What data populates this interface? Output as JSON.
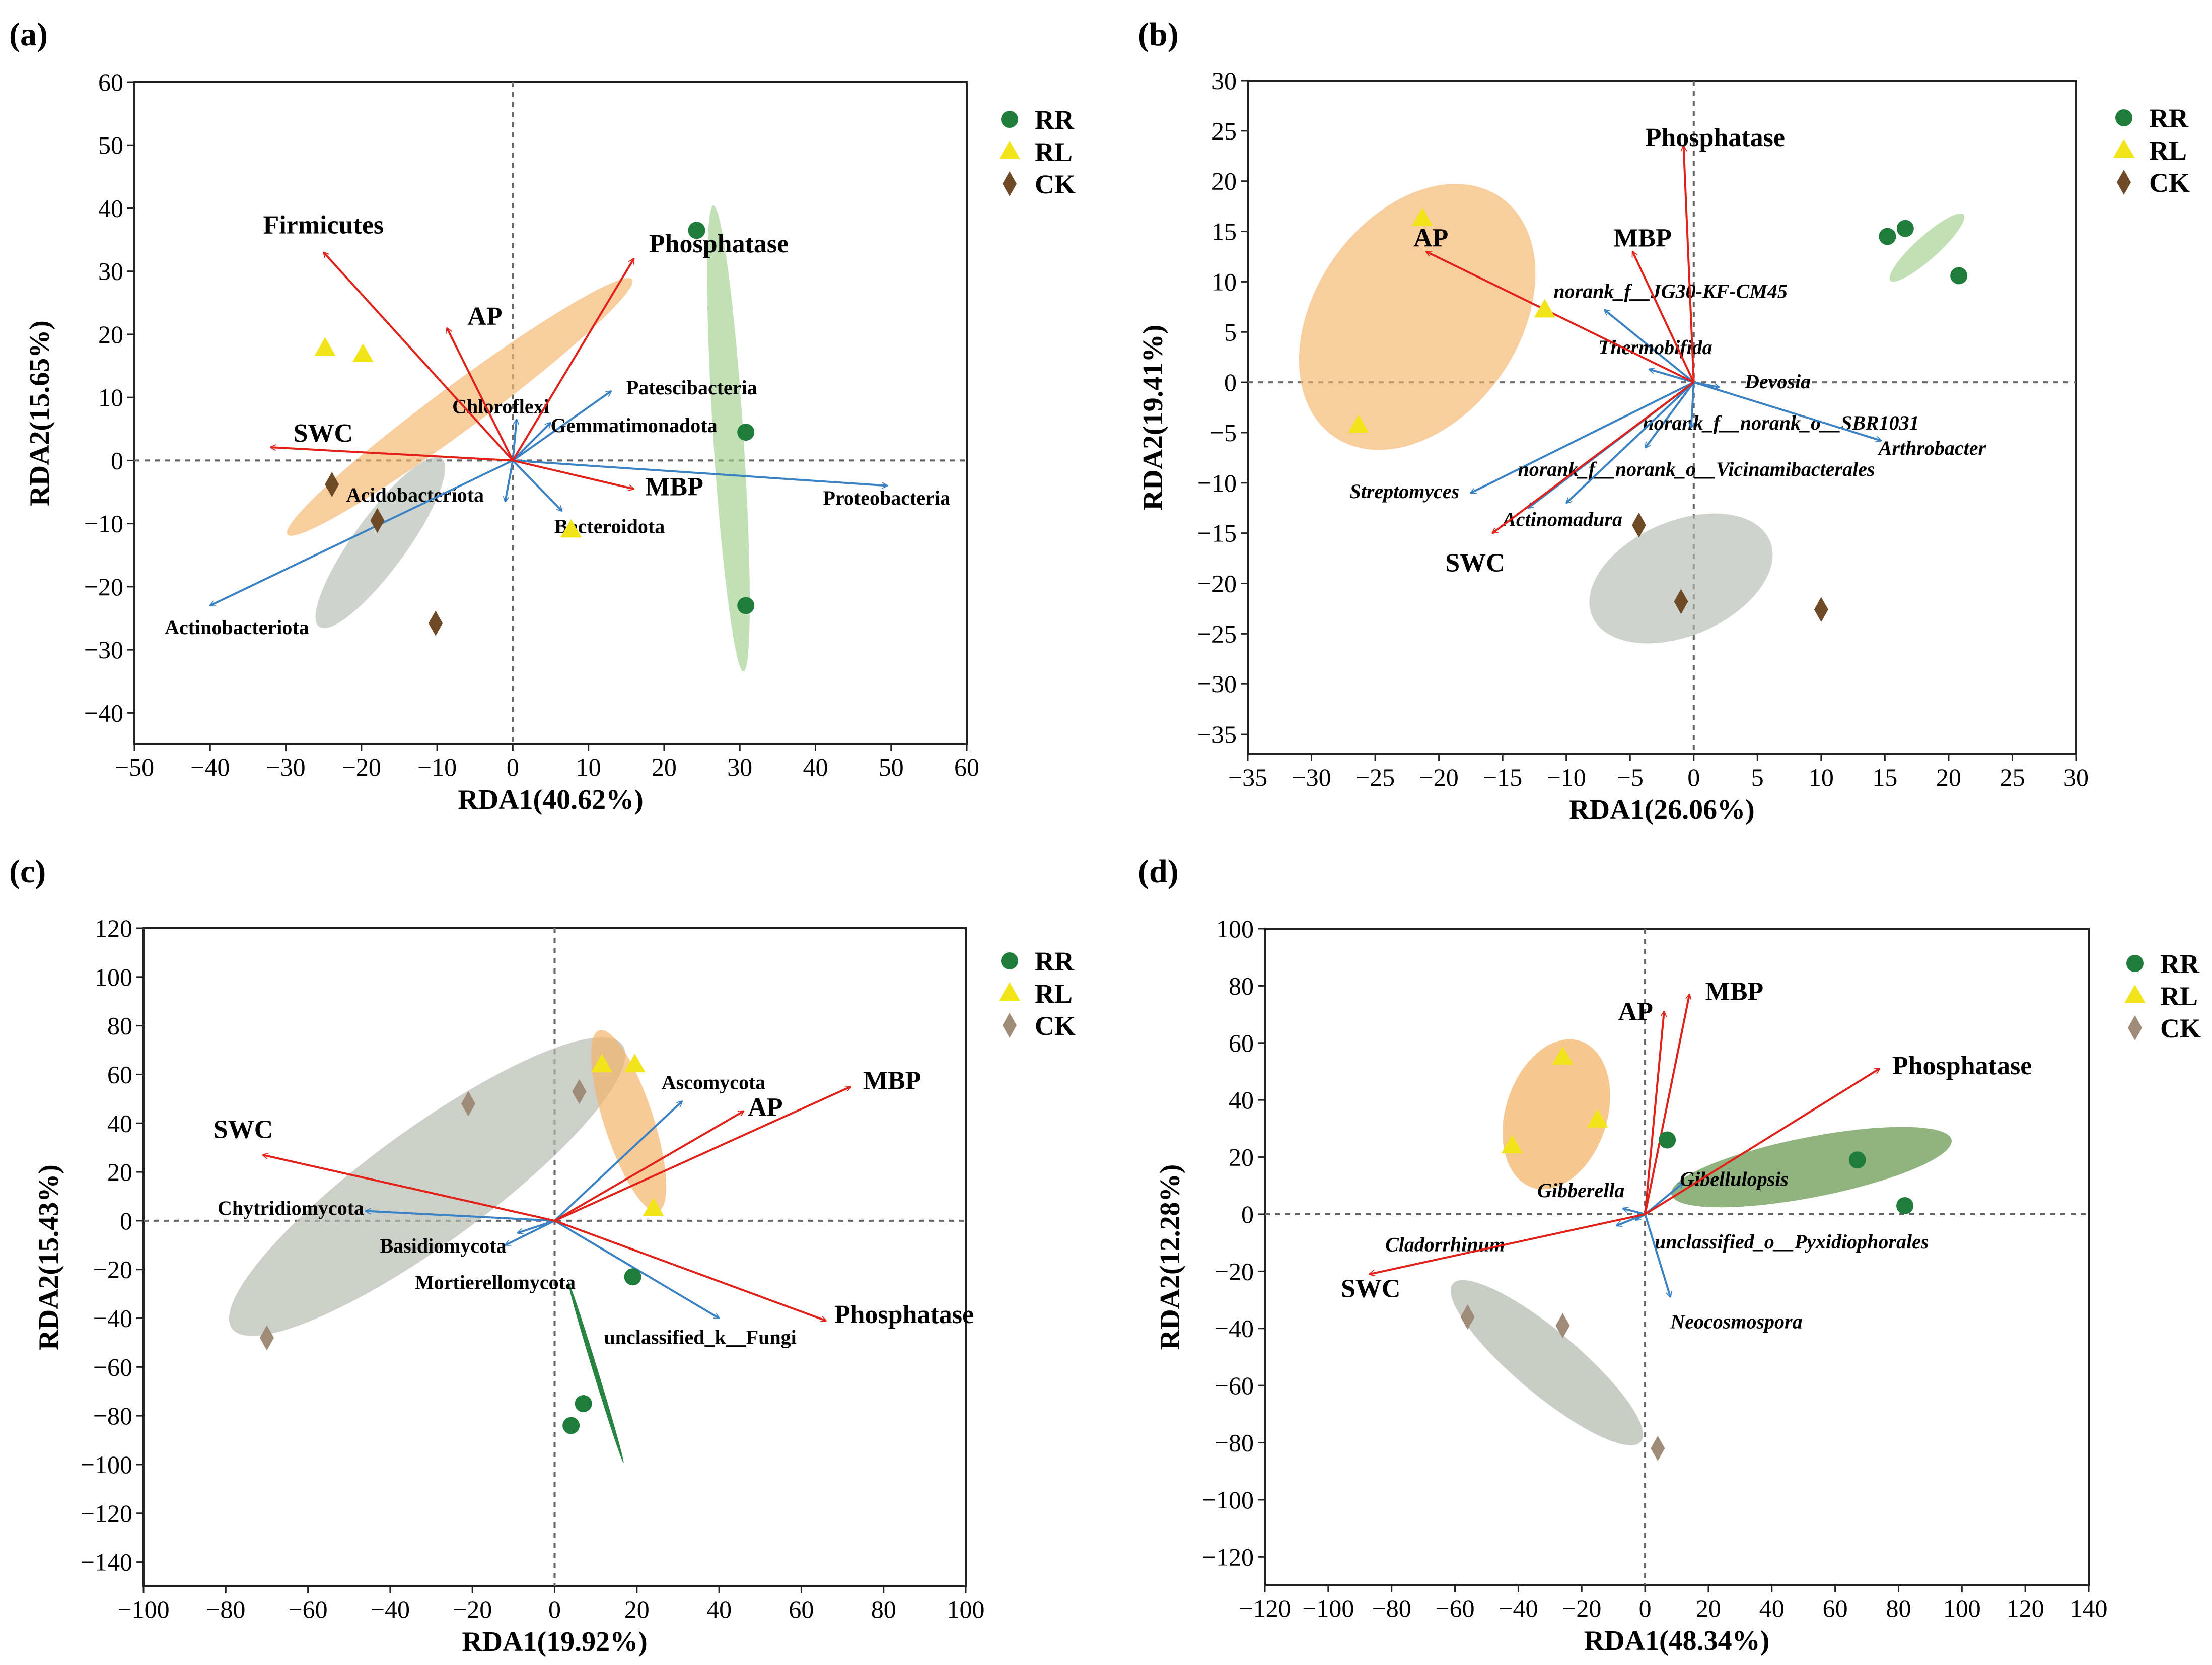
{
  "colors": {
    "env_arrow": "#e32119",
    "taxon_arrow": "#3a82c4",
    "RR": "#1e7d3a",
    "RL": "#f1e51a",
    "CK_dark": "#6f4a27",
    "CK_light": "#a08a78"
  },
  "chart_data": [
    {
      "id": "a",
      "label": "(a)",
      "type": "scatter",
      "xlabel": "RDA1(40.62%)",
      "ylabel": "RDA2(15.65%)",
      "xlim": [
        -50,
        60
      ],
      "ylim": [
        -45,
        60
      ],
      "xticks": [
        -50,
        -40,
        -30,
        -20,
        -10,
        0,
        10,
        20,
        30,
        40,
        50,
        60
      ],
      "yticks": [
        -40,
        -30,
        -20,
        -10,
        0,
        10,
        20,
        30,
        40,
        50,
        60
      ],
      "taxon_italic": false,
      "legend": [
        {
          "name": "RR",
          "marker": "circle",
          "color": "#1e7d3a"
        },
        {
          "name": "RL",
          "marker": "triangle",
          "color": "#f1e51a"
        },
        {
          "name": "CK",
          "marker": "diamond",
          "color": "#6f4a27"
        }
      ],
      "ellipses": [
        {
          "group": "RR",
          "color": "#9fcf8d",
          "opacity": 0.65,
          "center": [
            28.5,
            3.5
          ],
          "axes": [
            2,
            37
          ],
          "angle": -3.7
        },
        {
          "group": "RL",
          "color": "#f4b46b",
          "opacity": 0.65,
          "center": [
            -7,
            8.5
          ],
          "axes": [
            3,
            34
          ],
          "angle": 53.5
        },
        {
          "group": "CK",
          "color": "#b6bcb2",
          "opacity": 0.65,
          "center": [
            -17.5,
            -13
          ],
          "axes": [
            3.5,
            16.5
          ],
          "angle": 36
        }
      ],
      "points": [
        {
          "group": "RR",
          "x": 24.3,
          "y": 36.5
        },
        {
          "group": "RR",
          "x": 30.8,
          "y": 4.5
        },
        {
          "group": "RR",
          "x": 30.8,
          "y": -23
        },
        {
          "group": "RL",
          "x": -24.8,
          "y": 17.8
        },
        {
          "group": "RL",
          "x": -19.8,
          "y": 16.8
        },
        {
          "group": "RL",
          "x": 7.7,
          "y": -11
        },
        {
          "group": "CK",
          "x": -23.9,
          "y": -3.8
        },
        {
          "group": "CK",
          "x": -17.9,
          "y": -9.5
        },
        {
          "group": "CK",
          "x": -10.2,
          "y": -25.8
        }
      ],
      "env_arrows": [
        {
          "name": "Phosphatase",
          "x": 16,
          "y": 32,
          "lx": 18,
          "ly": 33,
          "anchor": "start"
        },
        {
          "name": "Firmicutes",
          "x": -25,
          "y": 33,
          "lx": -33,
          "ly": 36,
          "anchor": "start"
        },
        {
          "name": "AP",
          "x": -8.7,
          "y": 21,
          "lx": -6,
          "ly": 21.5,
          "anchor": "start"
        },
        {
          "name": "SWC",
          "x": -32,
          "y": 2.1,
          "lx": -29,
          "ly": 3,
          "anchor": "start"
        },
        {
          "name": "MBP",
          "x": 16,
          "y": -4.5,
          "lx": 17.5,
          "ly": -5.5,
          "anchor": "start"
        }
      ],
      "taxon_arrows": [
        {
          "name": "Patescibacteria",
          "x": 13,
          "y": 11,
          "lx": 15,
          "ly": 10.5,
          "anchor": "start"
        },
        {
          "name": "Chloroflexi",
          "x": 0.5,
          "y": 6.5,
          "lx": -8,
          "ly": 7.5,
          "anchor": "start"
        },
        {
          "name": "Gemmatimonadota",
          "x": 5,
          "y": 6,
          "lx": 5,
          "ly": 4.5,
          "anchor": "start"
        },
        {
          "name": "Proteobacteria",
          "x": 49.5,
          "y": -4,
          "lx": 41,
          "ly": -7,
          "anchor": "start"
        },
        {
          "name": "Acidobacteriota",
          "x": -1,
          "y": -6.5,
          "lx": -22,
          "ly": -6.5,
          "anchor": "start"
        },
        {
          "name": "Bacteroidota",
          "x": 6.5,
          "y": -8,
          "lx": 5.5,
          "ly": -11.5,
          "anchor": "start"
        },
        {
          "name": "Actinobacteriota",
          "x": -40,
          "y": -23,
          "lx": -46,
          "ly": -27.5,
          "anchor": "start"
        }
      ]
    },
    {
      "id": "b",
      "label": "(b)",
      "type": "scatter",
      "xlabel": "RDA1(26.06%)",
      "ylabel": "RDA2(19.41%)",
      "xlim": [
        -35,
        30
      ],
      "ylim": [
        -37,
        30
      ],
      "xticks": [
        -35,
        -30,
        -25,
        -20,
        -15,
        -10,
        -5,
        0,
        5,
        10,
        15,
        20,
        25,
        30
      ],
      "yticks": [
        -35,
        -30,
        -25,
        -20,
        -15,
        -10,
        -5,
        0,
        5,
        10,
        15,
        20,
        25,
        30
      ],
      "taxon_italic": true,
      "legend": [
        {
          "name": "RR",
          "marker": "circle",
          "color": "#1e7d3a"
        },
        {
          "name": "RL",
          "marker": "triangle",
          "color": "#f1e51a"
        },
        {
          "name": "CK",
          "marker": "diamond",
          "color": "#6f4a27"
        }
      ],
      "ellipses": [
        {
          "group": "RR",
          "color": "#9fcf8d",
          "opacity": 0.65,
          "center": [
            18.3,
            13.4
          ],
          "axes": [
            0.9,
            4.9
          ],
          "angle": 48
        },
        {
          "group": "RL",
          "color": "#f4b46b",
          "opacity": 0.65,
          "center": [
            -21.7,
            6.5
          ],
          "axes": [
            8,
            14.5
          ],
          "angle": 35
        },
        {
          "group": "CK",
          "color": "#b6bcb2",
          "opacity": 0.65,
          "center": [
            -1,
            -19.5
          ],
          "axes": [
            4.5,
            9.6
          ],
          "angle": 67
        }
      ],
      "points": [
        {
          "group": "RR",
          "x": 15.2,
          "y": 14.5
        },
        {
          "group": "RR",
          "x": 16.6,
          "y": 15.3
        },
        {
          "group": "RR",
          "x": 20.8,
          "y": 10.6
        },
        {
          "group": "RL",
          "x": -21.3,
          "y": 16.3
        },
        {
          "group": "RL",
          "x": -11.7,
          "y": 7.2
        },
        {
          "group": "RL",
          "x": -26.3,
          "y": -4.3
        },
        {
          "group": "CK",
          "x": -4.3,
          "y": -14.2
        },
        {
          "group": "CK",
          "x": -1,
          "y": -21.8
        },
        {
          "group": "CK",
          "x": 10,
          "y": -22.6
        }
      ],
      "env_arrows": [
        {
          "name": "Phosphatase",
          "x": -0.8,
          "y": 23.5,
          "lx": -3.8,
          "ly": 23.5,
          "anchor": "start"
        },
        {
          "name": "MBP",
          "x": -4.8,
          "y": 13,
          "lx": -6.3,
          "ly": 13.5,
          "anchor": "start"
        },
        {
          "name": "AP",
          "x": -21,
          "y": 13,
          "lx": -22,
          "ly": 13.5,
          "anchor": "start"
        },
        {
          "name": "SWC",
          "x": -15.8,
          "y": -15,
          "lx": -19.5,
          "ly": -18.8,
          "anchor": "start"
        }
      ],
      "taxon_arrows": [
        {
          "name": "norank_f__JG30-KF-CM45",
          "x": -7,
          "y": 7.2,
          "lx": -11,
          "ly": 8.4,
          "anchor": "start"
        },
        {
          "name": "Thermobifida",
          "x": -3.5,
          "y": 1.3,
          "lx": -7.5,
          "ly": 2.8,
          "anchor": "start"
        },
        {
          "name": "Devosia",
          "x": 2,
          "y": -0.5,
          "lx": 4,
          "ly": -0.6,
          "anchor": "start"
        },
        {
          "name": "norank_f__norank_o__SBR1031",
          "x": -3.8,
          "y": -6.5,
          "lx": -4,
          "ly": -4.7,
          "anchor": "start"
        },
        {
          "name": "Arthrobacter",
          "x": 14.7,
          "y": -5.8,
          "lx": 14.5,
          "ly": -7.2,
          "anchor": "start"
        },
        {
          "name": "Streptomyces",
          "x": -17.5,
          "y": -11,
          "lx": -27,
          "ly": -11.5,
          "anchor": "start"
        },
        {
          "name": "norank_f__norank_o__Vicinamibacterales",
          "x": -13,
          "y": -12.5,
          "lx": -13.8,
          "ly": -9.3,
          "anchor": "start"
        },
        {
          "name": "Actinomadura",
          "x": -10,
          "y": -12,
          "lx": -15,
          "ly": -14.3,
          "anchor": "start"
        },
        {
          "name": "",
          "x": -0.2,
          "y": -4.5,
          "lx": 0,
          "ly": 0,
          "anchor": "start"
        }
      ]
    },
    {
      "id": "c",
      "label": "(c)",
      "type": "scatter",
      "xlabel": "RDA1(19.92%)",
      "ylabel": "RDA2(15.43%)",
      "xlim": [
        -100,
        100
      ],
      "ylim": [
        -150,
        120
      ],
      "xticks": [
        -100,
        -80,
        -60,
        -40,
        -20,
        0,
        20,
        40,
        60,
        80,
        100
      ],
      "yticks": [
        -140,
        -120,
        -100,
        -80,
        -60,
        -40,
        -20,
        0,
        20,
        40,
        60,
        80,
        100,
        120
      ],
      "taxon_italic": false,
      "legend": [
        {
          "name": "RR",
          "marker": "circle",
          "color": "#1e7d3a"
        },
        {
          "name": "RL",
          "marker": "triangle",
          "color": "#f1e51a"
        },
        {
          "name": "CK",
          "marker": "diamond",
          "color": "#a08a78"
        }
      ],
      "ellipses": [
        {
          "group": "CK",
          "color": "#b6bcb2",
          "opacity": 0.7,
          "center": [
            -31,
            14
          ],
          "axes": [
            14,
            99
          ],
          "angle": 54
        },
        {
          "group": "RL",
          "color": "#f4b46b",
          "opacity": 0.7,
          "center": [
            18,
            41
          ],
          "axes": [
            6,
            39
          ],
          "angle": -18
        },
        {
          "group": "RR",
          "color": "#1e7d3a",
          "opacity": 0.95,
          "center": [
            10,
            -62
          ],
          "axes": [
            0.6,
            39
          ],
          "angle": -17
        }
      ],
      "points": [
        {
          "group": "RR",
          "x": 19,
          "y": -23
        },
        {
          "group": "RR",
          "x": 7,
          "y": -75
        },
        {
          "group": "RR",
          "x": 4,
          "y": -84
        },
        {
          "group": "RL",
          "x": 11.5,
          "y": 64
        },
        {
          "group": "RL",
          "x": 19.5,
          "y": 64
        },
        {
          "group": "RL",
          "x": 24,
          "y": 5
        },
        {
          "group": "CK",
          "x": -21,
          "y": 48
        },
        {
          "group": "CK",
          "x": 6,
          "y": 53
        },
        {
          "group": "CK",
          "x": -70,
          "y": -48
        }
      ],
      "env_arrows": [
        {
          "name": "MBP",
          "x": 72,
          "y": 55,
          "lx": 75,
          "ly": 54,
          "anchor": "start"
        },
        {
          "name": "AP",
          "x": 46,
          "y": 45,
          "lx": 47,
          "ly": 43,
          "anchor": "start"
        },
        {
          "name": "SWC",
          "x": -71,
          "y": 27,
          "lx": -83,
          "ly": 34,
          "anchor": "start"
        },
        {
          "name": "Phosphatase",
          "x": 66,
          "y": -41,
          "lx": 68,
          "ly": -42,
          "anchor": "start"
        }
      ],
      "taxon_arrows": [
        {
          "name": "Ascomycota",
          "x": 31,
          "y": 49,
          "lx": 26,
          "ly": 54,
          "anchor": "start"
        },
        {
          "name": "Chytridiomycota",
          "x": -46,
          "y": 4,
          "lx": -82,
          "ly": 2.5,
          "anchor": "start"
        },
        {
          "name": "Basidiomycota",
          "x": -9,
          "y": -5,
          "lx": -42.5,
          "ly": -13,
          "anchor": "start"
        },
        {
          "name": "Mortierellomycota",
          "x": -12,
          "y": -10,
          "lx": -34,
          "ly": -28,
          "anchor": "start"
        },
        {
          "name": "unclassified_k__Fungi",
          "x": 40,
          "y": -40,
          "lx": 12,
          "ly": -50.5,
          "anchor": "start"
        }
      ]
    },
    {
      "id": "d",
      "label": "(d)",
      "type": "scatter",
      "xlabel": "RDA1(48.34%)",
      "ylabel": "RDA2(12.28%)",
      "xlim": [
        -120,
        140
      ],
      "ylim": [
        -130,
        100
      ],
      "xticks": [
        -120,
        -100,
        -80,
        -60,
        -40,
        -20,
        0,
        20,
        40,
        60,
        80,
        100,
        120,
        140
      ],
      "yticks": [
        -120,
        -100,
        -80,
        -60,
        -40,
        -20,
        0,
        20,
        40,
        60,
        80,
        100
      ],
      "taxon_italic": true,
      "legend": [
        {
          "name": "RR",
          "marker": "circle",
          "color": "#1e7d3a"
        },
        {
          "name": "RL",
          "marker": "triangle",
          "color": "#f1e51a"
        },
        {
          "name": "CK",
          "marker": "diamond",
          "color": "#a08a78"
        }
      ],
      "ellipses": [
        {
          "group": "RR",
          "color": "#6b9a55",
          "opacity": 0.75,
          "center": [
            52.5,
            16.5
          ],
          "axes": [
            9.5,
            50
          ],
          "angle": 79
        },
        {
          "group": "RL",
          "color": "#f4b46b",
          "opacity": 0.75,
          "center": [
            -28,
            35
          ],
          "axes": [
            16,
            27
          ],
          "angle": 18
        },
        {
          "group": "CK",
          "color": "#b6bcb2",
          "opacity": 0.75,
          "center": [
            -31,
            -52
          ],
          "axes": [
            10,
            43
          ],
          "angle": -50
        }
      ],
      "points": [
        {
          "group": "RR",
          "x": 7,
          "y": 26
        },
        {
          "group": "RR",
          "x": 67,
          "y": 19
        },
        {
          "group": "RR",
          "x": 82,
          "y": 3
        },
        {
          "group": "RL",
          "x": -26,
          "y": 55
        },
        {
          "group": "RL",
          "x": -15,
          "y": 33
        },
        {
          "group": "RL",
          "x": -42,
          "y": 24
        },
        {
          "group": "CK",
          "x": -56,
          "y": -36
        },
        {
          "group": "CK",
          "x": -26,
          "y": -39
        },
        {
          "group": "CK",
          "x": 4,
          "y": -82
        }
      ],
      "env_arrows": [
        {
          "name": "MBP",
          "x": 14,
          "y": 77,
          "lx": 19,
          "ly": 75,
          "anchor": "start"
        },
        {
          "name": "AP",
          "x": 6,
          "y": 71,
          "lx": -8.5,
          "ly": 68,
          "anchor": "start"
        },
        {
          "name": "Phosphatase",
          "x": 74,
          "y": 51,
          "lx": 78,
          "ly": 49,
          "anchor": "start"
        },
        {
          "name": "SWC",
          "x": -87,
          "y": -21,
          "lx": -96,
          "ly": -29,
          "anchor": "start"
        }
      ],
      "taxon_arrows": [
        {
          "name": "Gibellulopsis",
          "x": 12,
          "y": 11,
          "lx": 11,
          "ly": 10,
          "anchor": "start"
        },
        {
          "name": "Gibberella",
          "x": -7,
          "y": 2,
          "lx": -34,
          "ly": 6,
          "anchor": "start"
        },
        {
          "name": "Cladorrhinum",
          "x": -3,
          "y": -2,
          "lx": -82,
          "ly": -13,
          "anchor": "start"
        },
        {
          "name": "unclassified_o__Pyxidiophorales",
          "x": -9,
          "y": -4,
          "lx": 3,
          "ly": -12,
          "anchor": "start"
        },
        {
          "name": "Neocosmospora",
          "x": 8,
          "y": -29,
          "lx": 8,
          "ly": -40,
          "anchor": "start"
        }
      ]
    }
  ]
}
